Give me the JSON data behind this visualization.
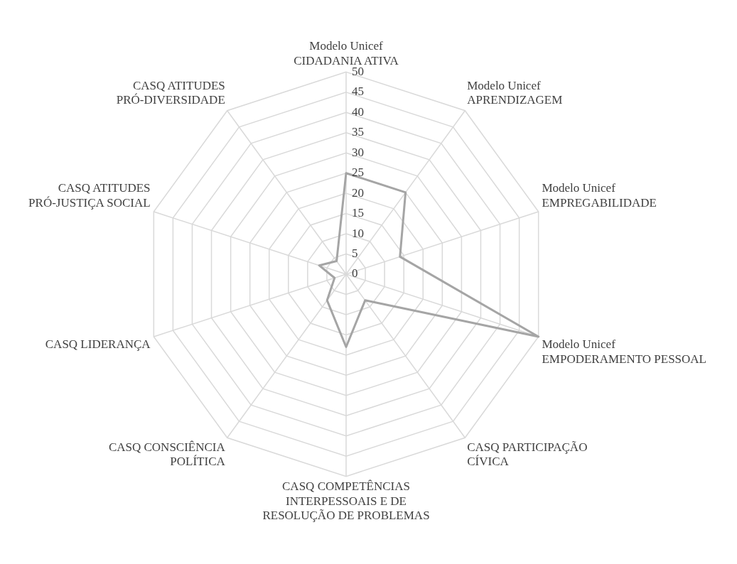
{
  "chart_data": {
    "type": "radar",
    "categories": [
      "Modelo Unicef CIDADANIA ATIVA",
      "Modelo Unicef APRENDIZAGEM",
      "Modelo Unicef EMPREGABILIDADE",
      "Modelo Unicef EMPODERAMENTO PESSOAL",
      "CASQ PARTICIPAÇÃO CÍVICA",
      "CASQ COMPETÊNCIAS INTERPESSOAIS E DE RESOLUÇÃO DE PROBLEMAS",
      "CASQ CONSCIÊNCIA POLÍTICA",
      "CASQ LIDERANÇA",
      "CASQ ATITUDES PRÓ-JUSTIÇA SOCIAL",
      "CASQ ATITUDES PRÓ-DIVERSIDADE"
    ],
    "series": [
      {
        "color": "#a5a5a5",
        "values": [
          25,
          25,
          14,
          50,
          8,
          18,
          8,
          3,
          7,
          4
        ]
      }
    ],
    "ylim": [
      0,
      50
    ],
    "yticks": [
      0,
      5,
      10,
      15,
      20,
      25,
      30,
      35,
      40,
      45,
      50
    ],
    "grid": true,
    "legend": false,
    "marker": "none",
    "line_style": "solid"
  }
}
